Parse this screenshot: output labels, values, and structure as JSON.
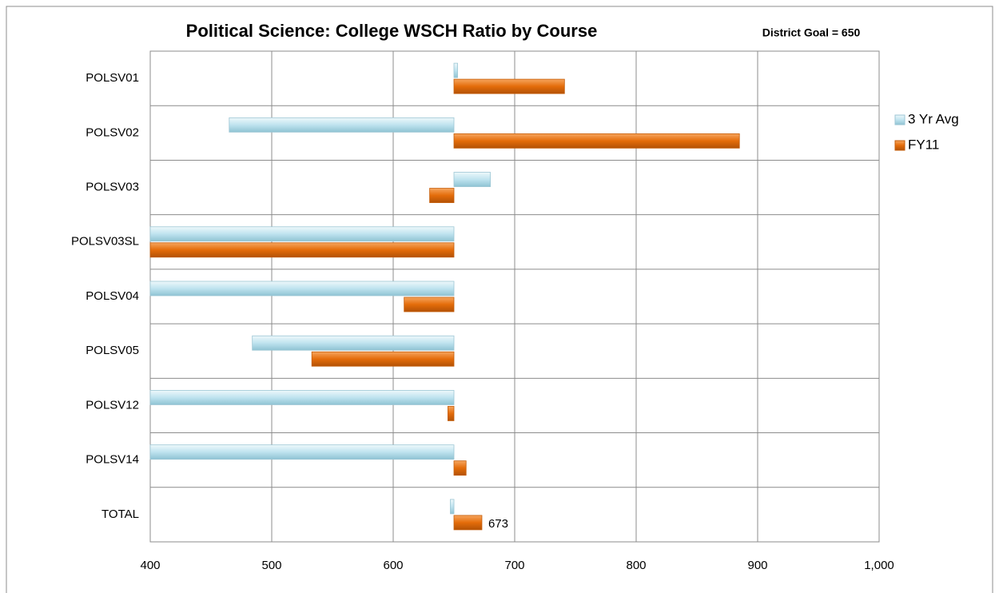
{
  "chart_data": {
    "type": "hbar",
    "title": "Political Science: College WSCH Ratio by Course",
    "annotation": "District Goal = 650",
    "baseline": 650,
    "categories": [
      "POLSV01",
      "POLSV02",
      "POLSV03",
      "POLSV03SL",
      "POLSV04",
      "POLSV05",
      "POLSV12",
      "POLSV14",
      "TOTAL"
    ],
    "series": [
      {
        "name": "3 Yr Avg",
        "color": "#bfe3ef",
        "values": [
          653,
          465,
          680,
          400,
          400,
          484,
          400,
          400,
          647
        ]
      },
      {
        "name": "FY11",
        "color": "#e46c0a",
        "values": [
          741,
          885,
          630,
          400,
          609,
          533,
          645,
          660,
          673
        ]
      }
    ],
    "xlim": [
      400,
      1000
    ],
    "xticks": [
      400,
      500,
      600,
      700,
      800,
      900,
      {
        "value": 1000,
        "label": "1,000"
      }
    ],
    "grid": true,
    "legend": "right"
  }
}
